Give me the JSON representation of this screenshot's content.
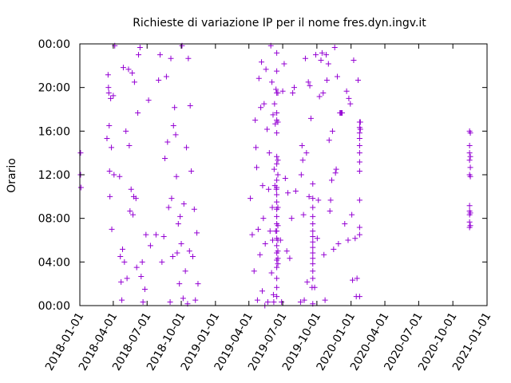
{
  "chart_data": {
    "type": "scatter",
    "title": "Richieste di variazione IP per il nome fres.dyn.ingv.it",
    "xlabel": "",
    "ylabel": "Orario",
    "marker": "plus",
    "color": "#9400d3",
    "grid": false,
    "legend": "none",
    "xlim": [
      "2018-01-01",
      "2021-01-01"
    ],
    "ylim": [
      "00:00",
      "24:00"
    ],
    "x_ticks": [
      "2018-01-01",
      "2018-04-01",
      "2018-07-01",
      "2018-10-01",
      "2019-01-01",
      "2019-04-01",
      "2019-07-01",
      "2019-10-01",
      "2020-01-01",
      "2020-04-01",
      "2020-07-01",
      "2020-10-01",
      "2021-01-01"
    ],
    "y_ticks": [
      "00:00",
      "04:00",
      "08:00",
      "12:00",
      "16:00",
      "20:00",
      "00:00"
    ],
    "points": [
      {
        "x": "2018-01-03",
        "y": "14:00"
      },
      {
        "x": "2018-01-03",
        "y": "12:00"
      },
      {
        "x": "2018-01-04",
        "y": "10:50"
      },
      {
        "x": "2018-03-15",
        "y": "15:20"
      },
      {
        "x": "2018-03-18",
        "y": "21:10"
      },
      {
        "x": "2018-03-19",
        "y": "20:00"
      },
      {
        "x": "2018-03-20",
        "y": "19:30"
      },
      {
        "x": "2018-03-21",
        "y": "16:30"
      },
      {
        "x": "2018-03-22",
        "y": "12:20"
      },
      {
        "x": "2018-03-23",
        "y": "10:00"
      },
      {
        "x": "2018-03-25",
        "y": "19:00"
      },
      {
        "x": "2018-03-27",
        "y": "14:30"
      },
      {
        "x": "2018-03-28",
        "y": "07:00"
      },
      {
        "x": "2018-04-01",
        "y": "19:15"
      },
      {
        "x": "2018-04-03",
        "y": "12:00"
      },
      {
        "x": "2018-04-05",
        "y": "23:50"
      },
      {
        "x": "2018-04-18",
        "y": "11:50"
      },
      {
        "x": "2018-04-20",
        "y": "04:30"
      },
      {
        "x": "2018-04-22",
        "y": "02:10"
      },
      {
        "x": "2018-04-24",
        "y": "00:30"
      },
      {
        "x": "2018-04-26",
        "y": "05:10"
      },
      {
        "x": "2018-04-28",
        "y": "21:50"
      },
      {
        "x": "2018-05-01",
        "y": "04:00"
      },
      {
        "x": "2018-05-05",
        "y": "16:00"
      },
      {
        "x": "2018-05-08",
        "y": "02:30"
      },
      {
        "x": "2018-05-12",
        "y": "21:40"
      },
      {
        "x": "2018-05-14",
        "y": "14:40"
      },
      {
        "x": "2018-05-16",
        "y": "08:40"
      },
      {
        "x": "2018-05-19",
        "y": "10:40"
      },
      {
        "x": "2018-05-22",
        "y": "21:20"
      },
      {
        "x": "2018-05-24",
        "y": "08:20"
      },
      {
        "x": "2018-05-26",
        "y": "10:00"
      },
      {
        "x": "2018-05-28",
        "y": "20:30"
      },
      {
        "x": "2018-06-01",
        "y": "09:50"
      },
      {
        "x": "2018-06-03",
        "y": "03:30"
      },
      {
        "x": "2018-06-06",
        "y": "17:40"
      },
      {
        "x": "2018-06-08",
        "y": "23:00"
      },
      {
        "x": "2018-06-12",
        "y": "23:40"
      },
      {
        "x": "2018-06-15",
        "y": "02:40"
      },
      {
        "x": "2018-06-18",
        "y": "04:00"
      },
      {
        "x": "2018-06-20",
        "y": "00:20"
      },
      {
        "x": "2018-06-25",
        "y": "01:30"
      },
      {
        "x": "2018-06-28",
        "y": "06:30"
      },
      {
        "x": "2018-07-05",
        "y": "18:50"
      },
      {
        "x": "2018-07-10",
        "y": "05:30"
      },
      {
        "x": "2018-07-25",
        "y": "06:30"
      },
      {
        "x": "2018-08-01",
        "y": "20:40"
      },
      {
        "x": "2018-08-05",
        "y": "23:00"
      },
      {
        "x": "2018-08-10",
        "y": "04:00"
      },
      {
        "x": "2018-08-15",
        "y": "06:20"
      },
      {
        "x": "2018-08-18",
        "y": "13:30"
      },
      {
        "x": "2018-08-22",
        "y": "21:00"
      },
      {
        "x": "2018-08-25",
        "y": "15:00"
      },
      {
        "x": "2018-08-28",
        "y": "09:00"
      },
      {
        "x": "2018-09-01",
        "y": "00:20"
      },
      {
        "x": "2018-09-03",
        "y": "22:40"
      },
      {
        "x": "2018-09-05",
        "y": "09:50"
      },
      {
        "x": "2018-09-08",
        "y": "04:30"
      },
      {
        "x": "2018-09-10",
        "y": "16:30"
      },
      {
        "x": "2018-09-13",
        "y": "18:10"
      },
      {
        "x": "2018-09-16",
        "y": "15:40"
      },
      {
        "x": "2018-09-18",
        "y": "11:50"
      },
      {
        "x": "2018-09-20",
        "y": "04:50"
      },
      {
        "x": "2018-09-23",
        "y": "07:30"
      },
      {
        "x": "2018-09-26",
        "y": "02:00"
      },
      {
        "x": "2018-09-28",
        "y": "08:10"
      },
      {
        "x": "2018-10-01",
        "y": "05:40"
      },
      {
        "x": "2018-10-03",
        "y": "23:50"
      },
      {
        "x": "2018-10-06",
        "y": "00:40"
      },
      {
        "x": "2018-10-08",
        "y": "09:20"
      },
      {
        "x": "2018-10-12",
        "y": "03:10"
      },
      {
        "x": "2018-10-15",
        "y": "14:30"
      },
      {
        "x": "2018-10-18",
        "y": "00:10"
      },
      {
        "x": "2018-10-20",
        "y": "22:40"
      },
      {
        "x": "2018-10-23",
        "y": "05:00"
      },
      {
        "x": "2018-10-25",
        "y": "18:20"
      },
      {
        "x": "2018-10-28",
        "y": "12:20"
      },
      {
        "x": "2018-11-01",
        "y": "04:30"
      },
      {
        "x": "2018-11-05",
        "y": "08:50"
      },
      {
        "x": "2018-11-08",
        "y": "00:30"
      },
      {
        "x": "2018-11-12",
        "y": "06:40"
      },
      {
        "x": "2018-11-15",
        "y": "02:00"
      },
      {
        "x": "2019-04-05",
        "y": "09:50"
      },
      {
        "x": "2019-04-10",
        "y": "06:30"
      },
      {
        "x": "2019-04-15",
        "y": "03:10"
      },
      {
        "x": "2019-04-18",
        "y": "17:00"
      },
      {
        "x": "2019-04-20",
        "y": "14:30"
      },
      {
        "x": "2019-04-22",
        "y": "12:40"
      },
      {
        "x": "2019-04-24",
        "y": "00:30"
      },
      {
        "x": "2019-04-26",
        "y": "07:00"
      },
      {
        "x": "2019-04-28",
        "y": "20:50"
      },
      {
        "x": "2019-05-01",
        "y": "04:40"
      },
      {
        "x": "2019-05-03",
        "y": "18:10"
      },
      {
        "x": "2019-05-05",
        "y": "22:20"
      },
      {
        "x": "2019-05-07",
        "y": "01:20"
      },
      {
        "x": "2019-05-08",
        "y": "11:00"
      },
      {
        "x": "2019-05-10",
        "y": "08:00"
      },
      {
        "x": "2019-05-12",
        "y": "18:30"
      },
      {
        "x": "2019-05-14",
        "y": "00:00"
      },
      {
        "x": "2019-05-15",
        "y": "05:40"
      },
      {
        "x": "2019-05-17",
        "y": "21:40"
      },
      {
        "x": "2019-05-20",
        "y": "16:10"
      },
      {
        "x": "2019-05-22",
        "y": "00:20"
      },
      {
        "x": "2019-05-24",
        "y": "10:40"
      },
      {
        "x": "2019-05-26",
        "y": "14:00"
      },
      {
        "x": "2019-05-28",
        "y": "06:50"
      },
      {
        "x": "2019-05-30",
        "y": "23:50"
      },
      {
        "x": "2019-06-01",
        "y": "03:00"
      },
      {
        "x": "2019-06-02",
        "y": "20:30"
      },
      {
        "x": "2019-06-03",
        "y": "09:00"
      },
      {
        "x": "2019-06-04",
        "y": "06:00"
      },
      {
        "x": "2019-06-05",
        "y": "17:30"
      },
      {
        "x": "2019-06-06",
        "y": "01:00"
      },
      {
        "x": "2019-06-07",
        "y": "00:20"
      },
      {
        "x": "2019-06-08",
        "y": "12:30"
      },
      {
        "x": "2019-06-09",
        "y": "18:30"
      },
      {
        "x": "2019-06-10",
        "y": "11:00"
      },
      {
        "x": "2019-06-11",
        "y": "16:40"
      },
      {
        "x": "2019-06-12",
        "y": "06:50"
      },
      {
        "x": "2019-06-13",
        "y": "19:50"
      },
      {
        "x": "2019-06-14",
        "y": "10:40"
      },
      {
        "x": "2019-06-15",
        "y": "00:50"
      },
      {
        "x": "2019-06-15",
        "y": "01:40"
      },
      {
        "x": "2019-06-15",
        "y": "02:30"
      },
      {
        "x": "2019-06-15",
        "y": "03:30"
      },
      {
        "x": "2019-06-15",
        "y": "04:10"
      },
      {
        "x": "2019-06-15",
        "y": "04:50"
      },
      {
        "x": "2019-06-15",
        "y": "05:30"
      },
      {
        "x": "2019-06-15",
        "y": "06:10"
      },
      {
        "x": "2019-06-15",
        "y": "06:50"
      },
      {
        "x": "2019-06-15",
        "y": "07:30"
      },
      {
        "x": "2019-06-15",
        "y": "08:10"
      },
      {
        "x": "2019-06-15",
        "y": "08:50"
      },
      {
        "x": "2019-06-15",
        "y": "09:30"
      },
      {
        "x": "2019-06-15",
        "y": "10:10"
      },
      {
        "x": "2019-06-15",
        "y": "10:50"
      },
      {
        "x": "2019-06-15",
        "y": "11:30"
      },
      {
        "x": "2019-06-15",
        "y": "13:00"
      },
      {
        "x": "2019-06-15",
        "y": "13:40"
      },
      {
        "x": "2019-06-15",
        "y": "15:50"
      },
      {
        "x": "2019-06-15",
        "y": "17:00"
      },
      {
        "x": "2019-06-15",
        "y": "17:40"
      },
      {
        "x": "2019-06-15",
        "y": "19:30"
      },
      {
        "x": "2019-06-15",
        "y": "21:30"
      },
      {
        "x": "2019-06-15",
        "y": "23:10"
      },
      {
        "x": "2019-06-18",
        "y": "03:50"
      },
      {
        "x": "2019-06-18",
        "y": "04:20"
      },
      {
        "x": "2019-06-18",
        "y": "05:00"
      },
      {
        "x": "2019-06-18",
        "y": "06:00"
      },
      {
        "x": "2019-06-18",
        "y": "07:20"
      },
      {
        "x": "2019-06-18",
        "y": "09:00"
      },
      {
        "x": "2019-06-18",
        "y": "12:00"
      },
      {
        "x": "2019-06-18",
        "y": "13:20"
      },
      {
        "x": "2019-06-18",
        "y": "16:50"
      },
      {
        "x": "2019-06-18",
        "y": "19:30"
      },
      {
        "x": "2019-06-25",
        "y": "06:00"
      },
      {
        "x": "2019-06-28",
        "y": "00:20"
      },
      {
        "x": "2019-07-01",
        "y": "19:40"
      },
      {
        "x": "2019-07-05",
        "y": "22:10"
      },
      {
        "x": "2019-07-08",
        "y": "11:40"
      },
      {
        "x": "2019-07-12",
        "y": "05:00"
      },
      {
        "x": "2019-07-15",
        "y": "10:20"
      },
      {
        "x": "2019-07-20",
        "y": "04:20"
      },
      {
        "x": "2019-07-25",
        "y": "08:00"
      },
      {
        "x": "2019-07-28",
        "y": "19:30"
      },
      {
        "x": "2019-08-01",
        "y": "20:00"
      },
      {
        "x": "2019-08-05",
        "y": "10:30"
      },
      {
        "x": "2019-08-18",
        "y": "00:20"
      },
      {
        "x": "2019-08-20",
        "y": "12:00"
      },
      {
        "x": "2019-08-22",
        "y": "14:40"
      },
      {
        "x": "2019-08-24",
        "y": "13:20"
      },
      {
        "x": "2019-08-26",
        "y": "08:20"
      },
      {
        "x": "2019-08-28",
        "y": "00:30"
      },
      {
        "x": "2019-08-31",
        "y": "22:40"
      },
      {
        "x": "2019-09-03",
        "y": "14:00"
      },
      {
        "x": "2019-09-05",
        "y": "02:10"
      },
      {
        "x": "2019-09-08",
        "y": "20:30"
      },
      {
        "x": "2019-09-10",
        "y": "10:00"
      },
      {
        "x": "2019-09-12",
        "y": "20:10"
      },
      {
        "x": "2019-09-15",
        "y": "17:10"
      },
      {
        "x": "2019-09-18",
        "y": "01:40"
      },
      {
        "x": "2019-09-20",
        "y": "00:10"
      },
      {
        "x": "2019-09-20",
        "y": "02:30"
      },
      {
        "x": "2019-09-20",
        "y": "03:10"
      },
      {
        "x": "2019-09-20",
        "y": "03:50"
      },
      {
        "x": "2019-09-20",
        "y": "04:20"
      },
      {
        "x": "2019-09-20",
        "y": "04:50"
      },
      {
        "x": "2019-09-20",
        "y": "05:20"
      },
      {
        "x": "2019-09-20",
        "y": "05:50"
      },
      {
        "x": "2019-09-20",
        "y": "06:20"
      },
      {
        "x": "2019-09-20",
        "y": "06:50"
      },
      {
        "x": "2019-09-20",
        "y": "07:30"
      },
      {
        "x": "2019-09-20",
        "y": "08:10"
      },
      {
        "x": "2019-09-20",
        "y": "09:00"
      },
      {
        "x": "2019-09-20",
        "y": "09:50"
      },
      {
        "x": "2019-09-20",
        "y": "11:10"
      },
      {
        "x": "2019-09-25",
        "y": "01:40"
      },
      {
        "x": "2019-09-28",
        "y": "23:00"
      },
      {
        "x": "2019-10-02",
        "y": "06:10"
      },
      {
        "x": "2019-10-05",
        "y": "09:40"
      },
      {
        "x": "2019-10-08",
        "y": "19:10"
      },
      {
        "x": "2019-10-12",
        "y": "22:30"
      },
      {
        "x": "2019-10-15",
        "y": "23:10"
      },
      {
        "x": "2019-10-18",
        "y": "19:30"
      },
      {
        "x": "2019-10-20",
        "y": "04:40"
      },
      {
        "x": "2019-10-23",
        "y": "00:30"
      },
      {
        "x": "2019-10-26",
        "y": "23:00"
      },
      {
        "x": "2019-10-28",
        "y": "20:40"
      },
      {
        "x": "2019-11-01",
        "y": "22:10"
      },
      {
        "x": "2019-11-03",
        "y": "15:10"
      },
      {
        "x": "2019-11-05",
        "y": "08:40"
      },
      {
        "x": "2019-11-07",
        "y": "09:40"
      },
      {
        "x": "2019-11-10",
        "y": "11:30"
      },
      {
        "x": "2019-11-12",
        "y": "16:00"
      },
      {
        "x": "2019-11-15",
        "y": "05:10"
      },
      {
        "x": "2019-11-18",
        "y": "23:40"
      },
      {
        "x": "2019-11-20",
        "y": "12:10"
      },
      {
        "x": "2019-11-22",
        "y": "12:30"
      },
      {
        "x": "2019-11-25",
        "y": "21:00"
      },
      {
        "x": "2019-11-28",
        "y": "05:40"
      },
      {
        "x": "2019-12-02",
        "y": "17:40"
      },
      {
        "x": "2019-12-04",
        "y": "17:40"
      },
      {
        "x": "2019-12-06",
        "y": "17:40"
      },
      {
        "x": "2019-12-08",
        "y": "17:40"
      },
      {
        "x": "2019-12-15",
        "y": "07:30"
      },
      {
        "x": "2019-12-20",
        "y": "19:40"
      },
      {
        "x": "2019-12-24",
        "y": "06:00"
      },
      {
        "x": "2019-12-26",
        "y": "19:00"
      },
      {
        "x": "2019-12-30",
        "y": "18:30"
      },
      {
        "x": "2020-01-03",
        "y": "08:20"
      },
      {
        "x": "2020-01-05",
        "y": "02:20"
      },
      {
        "x": "2020-01-08",
        "y": "22:30"
      },
      {
        "x": "2020-01-12",
        "y": "06:10"
      },
      {
        "x": "2020-01-15",
        "y": "00:50"
      },
      {
        "x": "2020-01-17",
        "y": "02:30"
      },
      {
        "x": "2020-01-20",
        "y": "20:40"
      },
      {
        "x": "2020-01-24",
        "y": "16:50"
      },
      {
        "x": "2020-01-24",
        "y": "16:20"
      },
      {
        "x": "2020-01-24",
        "y": "15:50"
      },
      {
        "x": "2020-01-24",
        "y": "15:20"
      },
      {
        "x": "2020-01-24",
        "y": "14:40"
      },
      {
        "x": "2020-01-24",
        "y": "14:00"
      },
      {
        "x": "2020-01-24",
        "y": "13:10"
      },
      {
        "x": "2020-01-24",
        "y": "12:20"
      },
      {
        "x": "2020-01-24",
        "y": "09:40"
      },
      {
        "x": "2020-01-24",
        "y": "07:10"
      },
      {
        "x": "2020-01-24",
        "y": "06:30"
      },
      {
        "x": "2020-01-24",
        "y": "00:50"
      },
      {
        "x": "2020-01-26",
        "y": "16:10"
      },
      {
        "x": "2020-01-26",
        "y": "16:50"
      },
      {
        "x": "2020-11-15",
        "y": "16:00"
      },
      {
        "x": "2020-11-15",
        "y": "14:40"
      },
      {
        "x": "2020-11-15",
        "y": "14:00"
      },
      {
        "x": "2020-11-15",
        "y": "13:20"
      },
      {
        "x": "2020-11-15",
        "y": "12:00"
      },
      {
        "x": "2020-11-15",
        "y": "09:10"
      },
      {
        "x": "2020-11-15",
        "y": "08:40"
      },
      {
        "x": "2020-11-15",
        "y": "08:20"
      },
      {
        "x": "2020-11-15",
        "y": "07:40"
      },
      {
        "x": "2020-11-15",
        "y": "07:10"
      },
      {
        "x": "2020-11-17",
        "y": "15:50"
      },
      {
        "x": "2020-11-17",
        "y": "13:40"
      },
      {
        "x": "2020-11-17",
        "y": "12:40"
      },
      {
        "x": "2020-11-17",
        "y": "11:50"
      },
      {
        "x": "2020-11-17",
        "y": "08:30"
      },
      {
        "x": "2020-11-17",
        "y": "07:20"
      }
    ]
  }
}
